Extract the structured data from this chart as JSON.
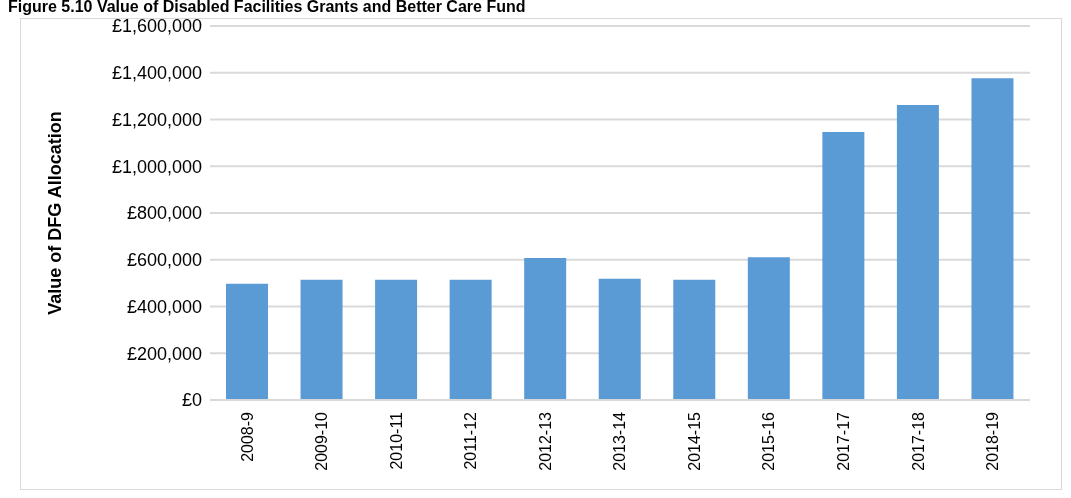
{
  "chart_data": {
    "type": "bar",
    "title": "Figure 5.10 Value of Disabled Facilities Grants and Better Care Fund",
    "ylabel": "Value of DFG Allocation",
    "categories": [
      "2008-9",
      "2009-10",
      "2010-11",
      "2011-12",
      "2012-13",
      "2013-14",
      "2014-15",
      "2015-16",
      "2017-17",
      "2017-18",
      "2018-19"
    ],
    "values": [
      497000,
      514000,
      514000,
      514000,
      607000,
      519000,
      514000,
      611000,
      1147000,
      1262000,
      1376000
    ],
    "color": "#5b9bd5",
    "ylim": [
      0,
      1600000
    ],
    "yticks": [
      {
        "value": 0,
        "label": "£0"
      },
      {
        "value": 200000,
        "label": "£200,000"
      },
      {
        "value": 400000,
        "label": "£400,000"
      },
      {
        "value": 600000,
        "label": "£600,000"
      },
      {
        "value": 800000,
        "label": "£800,000"
      },
      {
        "value": 1000000,
        "label": "£1,000,000"
      },
      {
        "value": 1200000,
        "label": "£1,200,000"
      },
      {
        "value": 1400000,
        "label": "£1,400,000"
      },
      {
        "value": 1600000,
        "label": "£1,600,000"
      }
    ],
    "grid": "y"
  }
}
